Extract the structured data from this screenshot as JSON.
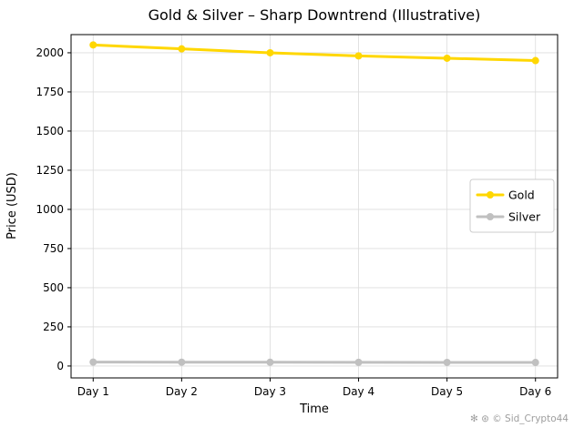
{
  "chart_data": {
    "type": "line",
    "title": "Gold & Silver – Sharp Downtrend (Illustrative)",
    "xlabel": "Time",
    "ylabel": "Price (USD)",
    "categories": [
      "Day 1",
      "Day 2",
      "Day 3",
      "Day 4",
      "Day 5",
      "Day 6"
    ],
    "series": [
      {
        "name": "Gold",
        "color": "#FFD700",
        "values": [
          2050,
          2025,
          2000,
          1980,
          1965,
          1950
        ]
      },
      {
        "name": "Silver",
        "color": "#C0C0C0",
        "values": [
          25,
          24.5,
          24,
          23.5,
          23,
          22.5
        ]
      }
    ],
    "yticks": [
      0,
      250,
      500,
      750,
      1000,
      1250,
      1500,
      1750,
      2000
    ],
    "ylim": [
      -76,
      2116
    ],
    "grid": true,
    "legend_position": "center right",
    "grid_color": "#dcdcdc",
    "spine_color": "#000000"
  },
  "watermark": "✻ ⊛ © Sid_Crypto44"
}
